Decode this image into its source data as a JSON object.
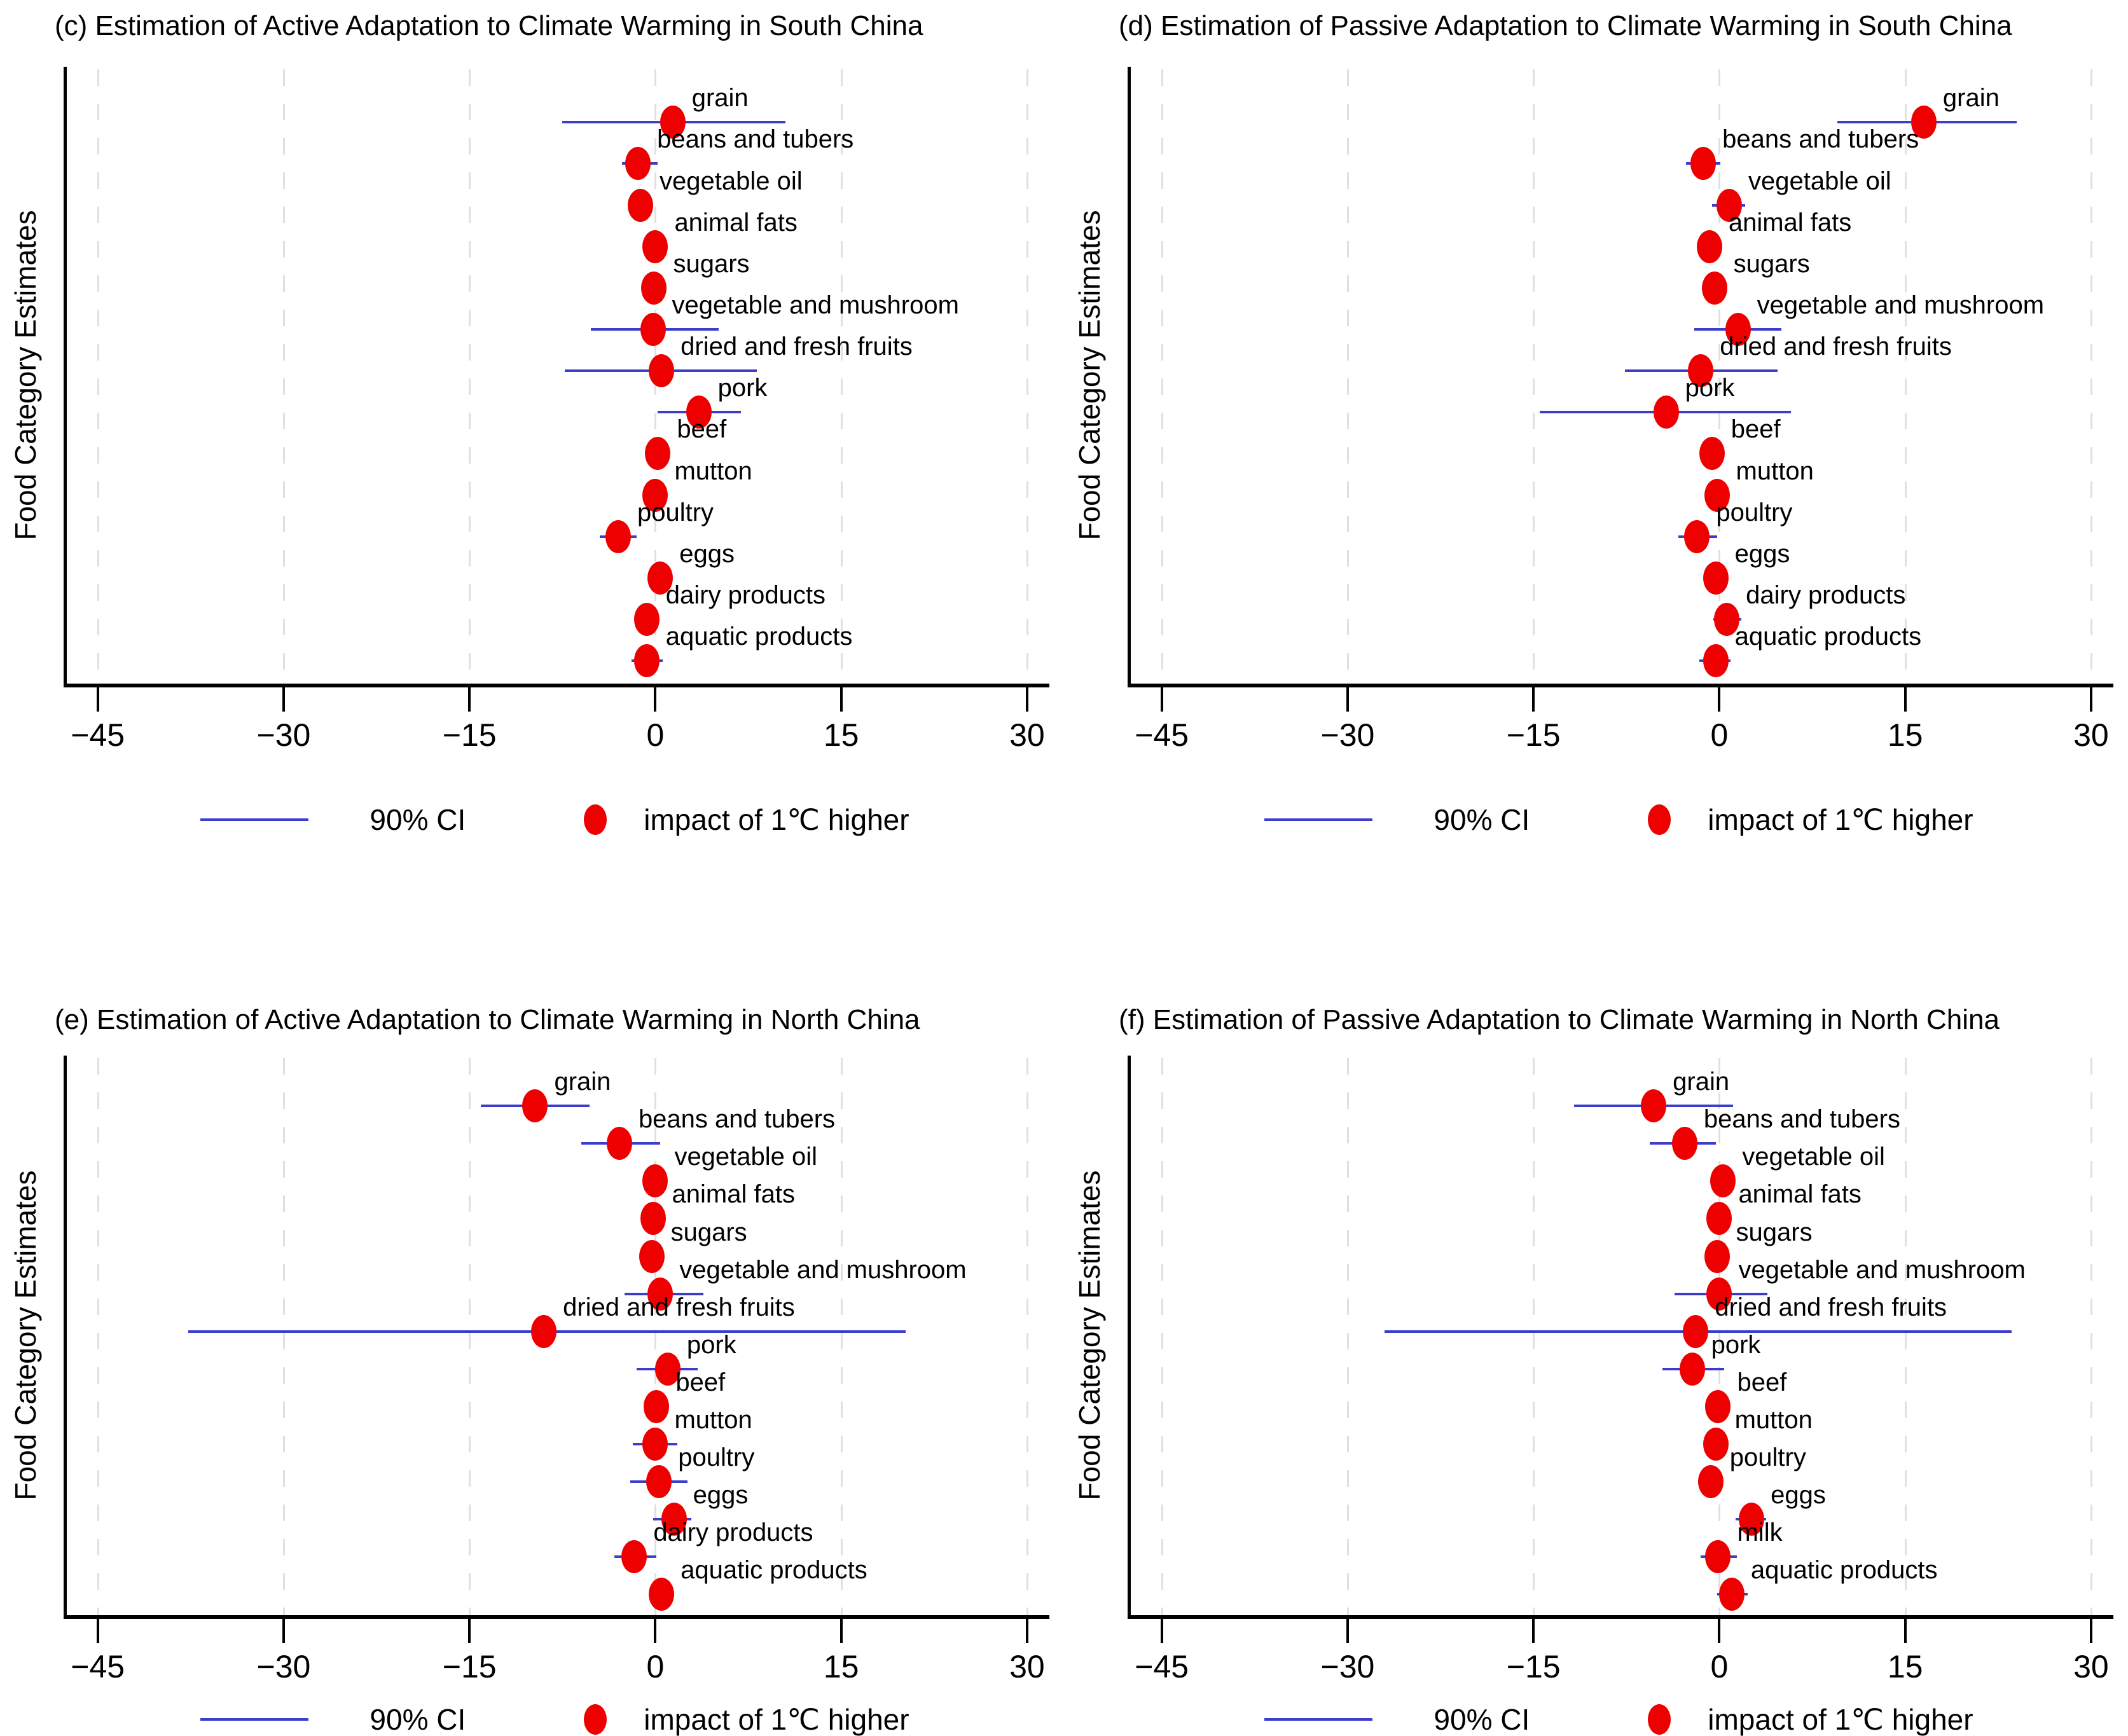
{
  "figure": {
    "ylabel": "Food Category Estimates",
    "x_ticks": [
      -45,
      -30,
      -15,
      0,
      15,
      30
    ],
    "x_tick_labels": [
      "−45",
      "−30",
      "−15",
      "0",
      "15",
      "30"
    ],
    "xlim": [
      -47.5,
      31.8
    ],
    "grid": "on",
    "legend": {
      "ci_label": "90% CI",
      "impact_label": "impact of 1℃ higher"
    },
    "colors": {
      "ci_line": "#3d3dcc",
      "dot": "#ee0000",
      "grid": "#e0e0e0",
      "axis": "#000000"
    }
  },
  "chart_data": [
    {
      "id": "c",
      "type": "scatter",
      "title": "(c) Estimation of Active Adaptation to Climate Warming in South China",
      "xlabel": "",
      "ylabel": "Food Category Estimates",
      "points": [
        {
          "label": "grain",
          "estimate": 1.4,
          "ci_low": -7.5,
          "ci_high": 10.5
        },
        {
          "label": "beans and tubers",
          "estimate": -1.4,
          "ci_low": -2.7,
          "ci_high": 0.2
        },
        {
          "label": "vegetable oil",
          "estimate": -1.2,
          "ci_low": -1.9,
          "ci_high": -0.4
        },
        {
          "label": "animal fats",
          "estimate": 0.0,
          "ci_low": -0.6,
          "ci_high": 0.6
        },
        {
          "label": "sugars",
          "estimate": -0.1,
          "ci_low": -0.8,
          "ci_high": 0.6
        },
        {
          "label": "vegetable and mushroom",
          "estimate": -0.2,
          "ci_low": -5.2,
          "ci_high": 5.1
        },
        {
          "label": "dried and fresh fruits",
          "estimate": 0.5,
          "ci_low": -7.3,
          "ci_high": 8.2
        },
        {
          "label": "pork",
          "estimate": 3.5,
          "ci_low": 0.2,
          "ci_high": 6.9
        },
        {
          "label": "beef",
          "estimate": 0.2,
          "ci_low": -0.6,
          "ci_high": 1.0
        },
        {
          "label": "mutton",
          "estimate": 0.0,
          "ci_low": -0.7,
          "ci_high": 0.7
        },
        {
          "label": "poultry",
          "estimate": -3.0,
          "ci_low": -4.5,
          "ci_high": -1.5
        },
        {
          "label": "eggs",
          "estimate": 0.4,
          "ci_low": -0.4,
          "ci_high": 1.2
        },
        {
          "label": "dairy products",
          "estimate": -0.7,
          "ci_low": -1.4,
          "ci_high": 0.1
        },
        {
          "label": "aquatic products",
          "estimate": -0.7,
          "ci_low": -1.9,
          "ci_high": 0.6
        }
      ]
    },
    {
      "id": "d",
      "type": "scatter",
      "title": "(d) Estimation of Passive Adaptation to Climate Warming in South China",
      "xlabel": "",
      "ylabel": "Food Category Estimates",
      "points": [
        {
          "label": "grain",
          "estimate": 16.5,
          "ci_low": 9.5,
          "ci_high": 24.0
        },
        {
          "label": "beans and tubers",
          "estimate": -1.3,
          "ci_low": -2.7,
          "ci_high": 0.1
        },
        {
          "label": "vegetable oil",
          "estimate": 0.8,
          "ci_low": -0.6,
          "ci_high": 2.1
        },
        {
          "label": "animal fats",
          "estimate": -0.8,
          "ci_low": -1.5,
          "ci_high": 0.0
        },
        {
          "label": "sugars",
          "estimate": -0.4,
          "ci_low": -1.1,
          "ci_high": 0.3
        },
        {
          "label": "vegetable and mushroom",
          "estimate": 1.5,
          "ci_low": -2.0,
          "ci_high": 5.0
        },
        {
          "label": "dried and fresh fruits",
          "estimate": -1.5,
          "ci_low": -7.6,
          "ci_high": 4.7
        },
        {
          "label": "pork",
          "estimate": -4.3,
          "ci_low": -14.5,
          "ci_high": 5.8
        },
        {
          "label": "beef",
          "estimate": -0.6,
          "ci_low": -1.5,
          "ci_high": 0.4
        },
        {
          "label": "mutton",
          "estimate": -0.2,
          "ci_low": -1.0,
          "ci_high": 0.6
        },
        {
          "label": "poultry",
          "estimate": -1.8,
          "ci_low": -3.3,
          "ci_high": -0.2
        },
        {
          "label": "eggs",
          "estimate": -0.3,
          "ci_low": -1.1,
          "ci_high": 0.5
        },
        {
          "label": "dairy products",
          "estimate": 0.6,
          "ci_low": -0.5,
          "ci_high": 1.8
        },
        {
          "label": "aquatic products",
          "estimate": -0.3,
          "ci_low": -1.6,
          "ci_high": 0.9
        }
      ]
    },
    {
      "id": "e",
      "type": "scatter",
      "title": "(e) Estimation of Active Adaptation to Climate Warming in North China",
      "xlabel": "",
      "ylabel": "Food Category Estimates",
      "points": [
        {
          "label": "grain",
          "estimate": -9.7,
          "ci_low": -14.1,
          "ci_high": -5.3
        },
        {
          "label": "beans and tubers",
          "estimate": -2.9,
          "ci_low": -6.0,
          "ci_high": 0.4
        },
        {
          "label": "vegetable oil",
          "estimate": 0.0,
          "ci_low": -0.7,
          "ci_high": 0.7
        },
        {
          "label": "animal fats",
          "estimate": -0.2,
          "ci_low": -0.9,
          "ci_high": 0.5
        },
        {
          "label": "sugars",
          "estimate": -0.3,
          "ci_low": -1.0,
          "ci_high": 0.5
        },
        {
          "label": "vegetable and mushroom",
          "estimate": 0.4,
          "ci_low": -2.5,
          "ci_high": 3.9
        },
        {
          "label": "dried and fresh fruits",
          "estimate": -9.0,
          "ci_low": -37.7,
          "ci_high": 20.2
        },
        {
          "label": "pork",
          "estimate": 1.0,
          "ci_low": -1.5,
          "ci_high": 3.4
        },
        {
          "label": "beef",
          "estimate": 0.1,
          "ci_low": -0.6,
          "ci_high": 0.8
        },
        {
          "label": "mutton",
          "estimate": 0.0,
          "ci_low": -1.8,
          "ci_high": 1.8
        },
        {
          "label": "poultry",
          "estimate": 0.3,
          "ci_low": -2.0,
          "ci_high": 2.6
        },
        {
          "label": "eggs",
          "estimate": 1.5,
          "ci_low": -0.2,
          "ci_high": 2.9
        },
        {
          "label": "dairy products",
          "estimate": -1.7,
          "ci_low": -3.3,
          "ci_high": 0.1
        },
        {
          "label": "aquatic products",
          "estimate": 0.5,
          "ci_low": -0.4,
          "ci_high": 1.3
        }
      ]
    },
    {
      "id": "f",
      "type": "scatter",
      "title": "(f) Estimation of Passive Adaptation to Climate Warming in North China",
      "xlabel": "",
      "ylabel": "Food Category Estimates",
      "points": [
        {
          "label": "grain",
          "estimate": -5.3,
          "ci_low": -11.7,
          "ci_high": 1.1
        },
        {
          "label": "beans and tubers",
          "estimate": -2.8,
          "ci_low": -5.6,
          "ci_high": -0.3
        },
        {
          "label": "vegetable oil",
          "estimate": 0.3,
          "ci_low": -0.5,
          "ci_high": 1.1
        },
        {
          "label": "animal fats",
          "estimate": 0.0,
          "ci_low": -0.7,
          "ci_high": 0.7
        },
        {
          "label": "sugars",
          "estimate": -0.2,
          "ci_low": -0.9,
          "ci_high": 0.5
        },
        {
          "label": "vegetable and mushroom",
          "estimate": 0.0,
          "ci_low": -3.6,
          "ci_high": 3.9
        },
        {
          "label": "dried and fresh fruits",
          "estimate": -1.9,
          "ci_low": -27.0,
          "ci_high": 23.6
        },
        {
          "label": "pork",
          "estimate": -2.2,
          "ci_low": -4.6,
          "ci_high": 0.4
        },
        {
          "label": "beef",
          "estimate": -0.1,
          "ci_low": -0.9,
          "ci_high": 0.7
        },
        {
          "label": "mutton",
          "estimate": -0.3,
          "ci_low": -1.1,
          "ci_high": 0.5
        },
        {
          "label": "poultry",
          "estimate": -0.7,
          "ci_low": -1.7,
          "ci_high": 0.3
        },
        {
          "label": "eggs",
          "estimate": 2.6,
          "ci_low": 1.3,
          "ci_high": 3.8
        },
        {
          "label": "milk",
          "estimate": -0.1,
          "ci_low": -1.5,
          "ci_high": 1.4
        },
        {
          "label": "aquatic products",
          "estimate": 1.0,
          "ci_low": -0.2,
          "ci_high": 2.3
        }
      ]
    }
  ]
}
